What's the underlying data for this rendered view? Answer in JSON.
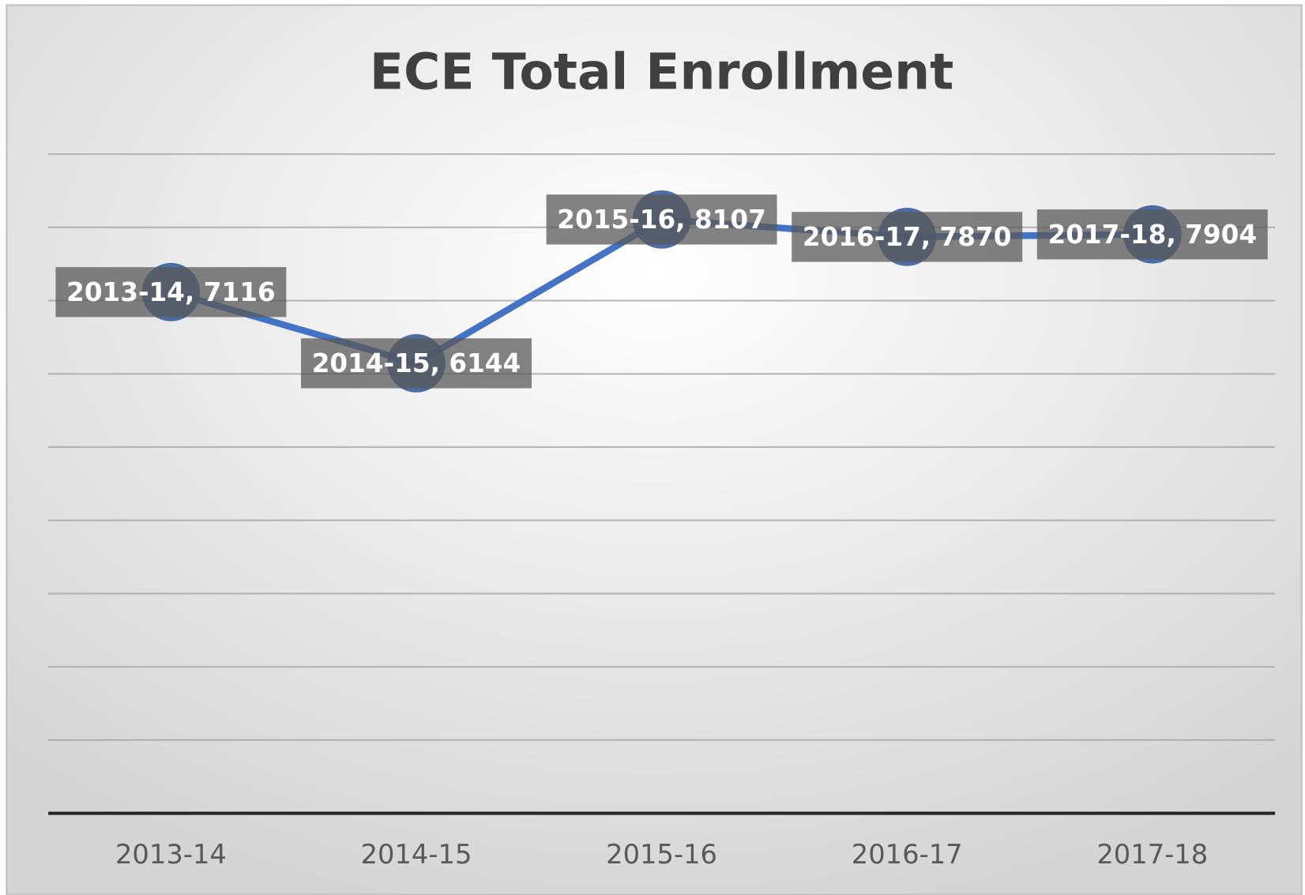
{
  "chart_data": {
    "type": "line",
    "title": "ECE Total Enrollment",
    "categories": [
      "2013-14",
      "2014-15",
      "2015-16",
      "2016-17",
      "2017-18"
    ],
    "values": [
      7116,
      6144,
      8107,
      7870,
      7904
    ],
    "value_labels": [
      "2013-14, 7116",
      "2014-15, 6144",
      "2015-16, 8107",
      "2016-17, 7870",
      "2017-18, 7904"
    ],
    "color": "#4472c4",
    "marker_color": "#2f5597",
    "ylim": [
      0,
      9000
    ],
    "yticks": [
      0,
      1000,
      2000,
      3000,
      4000,
      5000,
      6000,
      7000,
      8000,
      9000
    ],
    "grid": true
  }
}
